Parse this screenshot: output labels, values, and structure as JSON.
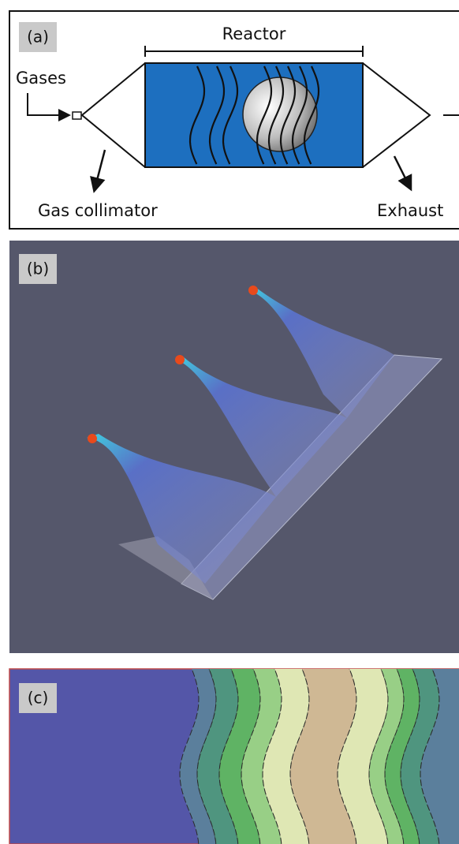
{
  "panel_a": {
    "label": "(a)",
    "reactor": "Reactor",
    "gases": "Gases",
    "collimator": "Gas collimator",
    "exhaust": "Exhaust"
  },
  "panel_b": {
    "label": "(b)"
  },
  "panel_c": {
    "label": "(c)"
  }
}
